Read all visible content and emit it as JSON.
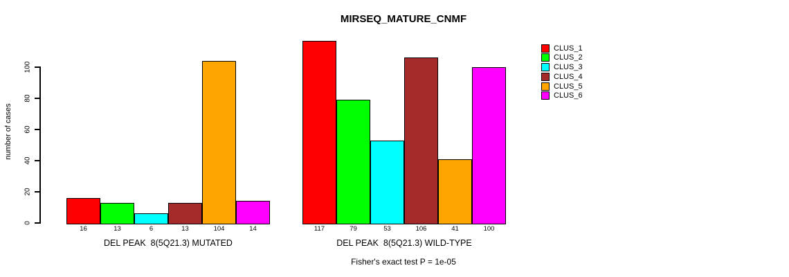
{
  "title": "MIRSEQ_MATURE_CNMF",
  "footer": "Fisher's exact test P = 1e-05",
  "y_axis": {
    "label": "number of cases",
    "ticks": [
      "0",
      "20",
      "40",
      "60",
      "80",
      "100"
    ]
  },
  "chart_data": {
    "type": "bar",
    "title": "MIRSEQ_MATURE_CNMF",
    "ylabel": "number of cases",
    "xlabel": "",
    "yticks": [
      0,
      20,
      40,
      60,
      80,
      100
    ],
    "ylim": [
      0,
      117
    ],
    "grid": false,
    "legend_position": "right",
    "value_labels_shown": true,
    "categories": [
      "DEL PEAK  8(5Q21.3) MUTATED",
      "DEL PEAK  8(5Q21.3) WILD-TYPE"
    ],
    "series": [
      {
        "name": "CLUS_1",
        "color": "#FF0000",
        "values": [
          16,
          117
        ]
      },
      {
        "name": "CLUS_2",
        "color": "#00FF00",
        "values": [
          13,
          79
        ]
      },
      {
        "name": "CLUS_3",
        "color": "#00FFFF",
        "values": [
          6,
          53
        ]
      },
      {
        "name": "CLUS_4",
        "color": "#A52A2A",
        "values": [
          13,
          106
        ]
      },
      {
        "name": "CLUS_5",
        "color": "#FFA500",
        "values": [
          104,
          41
        ]
      },
      {
        "name": "CLUS_6",
        "color": "#FF00FF",
        "values": [
          14,
          100
        ]
      }
    ],
    "annotation": "Fisher's exact test P = 1e-05"
  }
}
